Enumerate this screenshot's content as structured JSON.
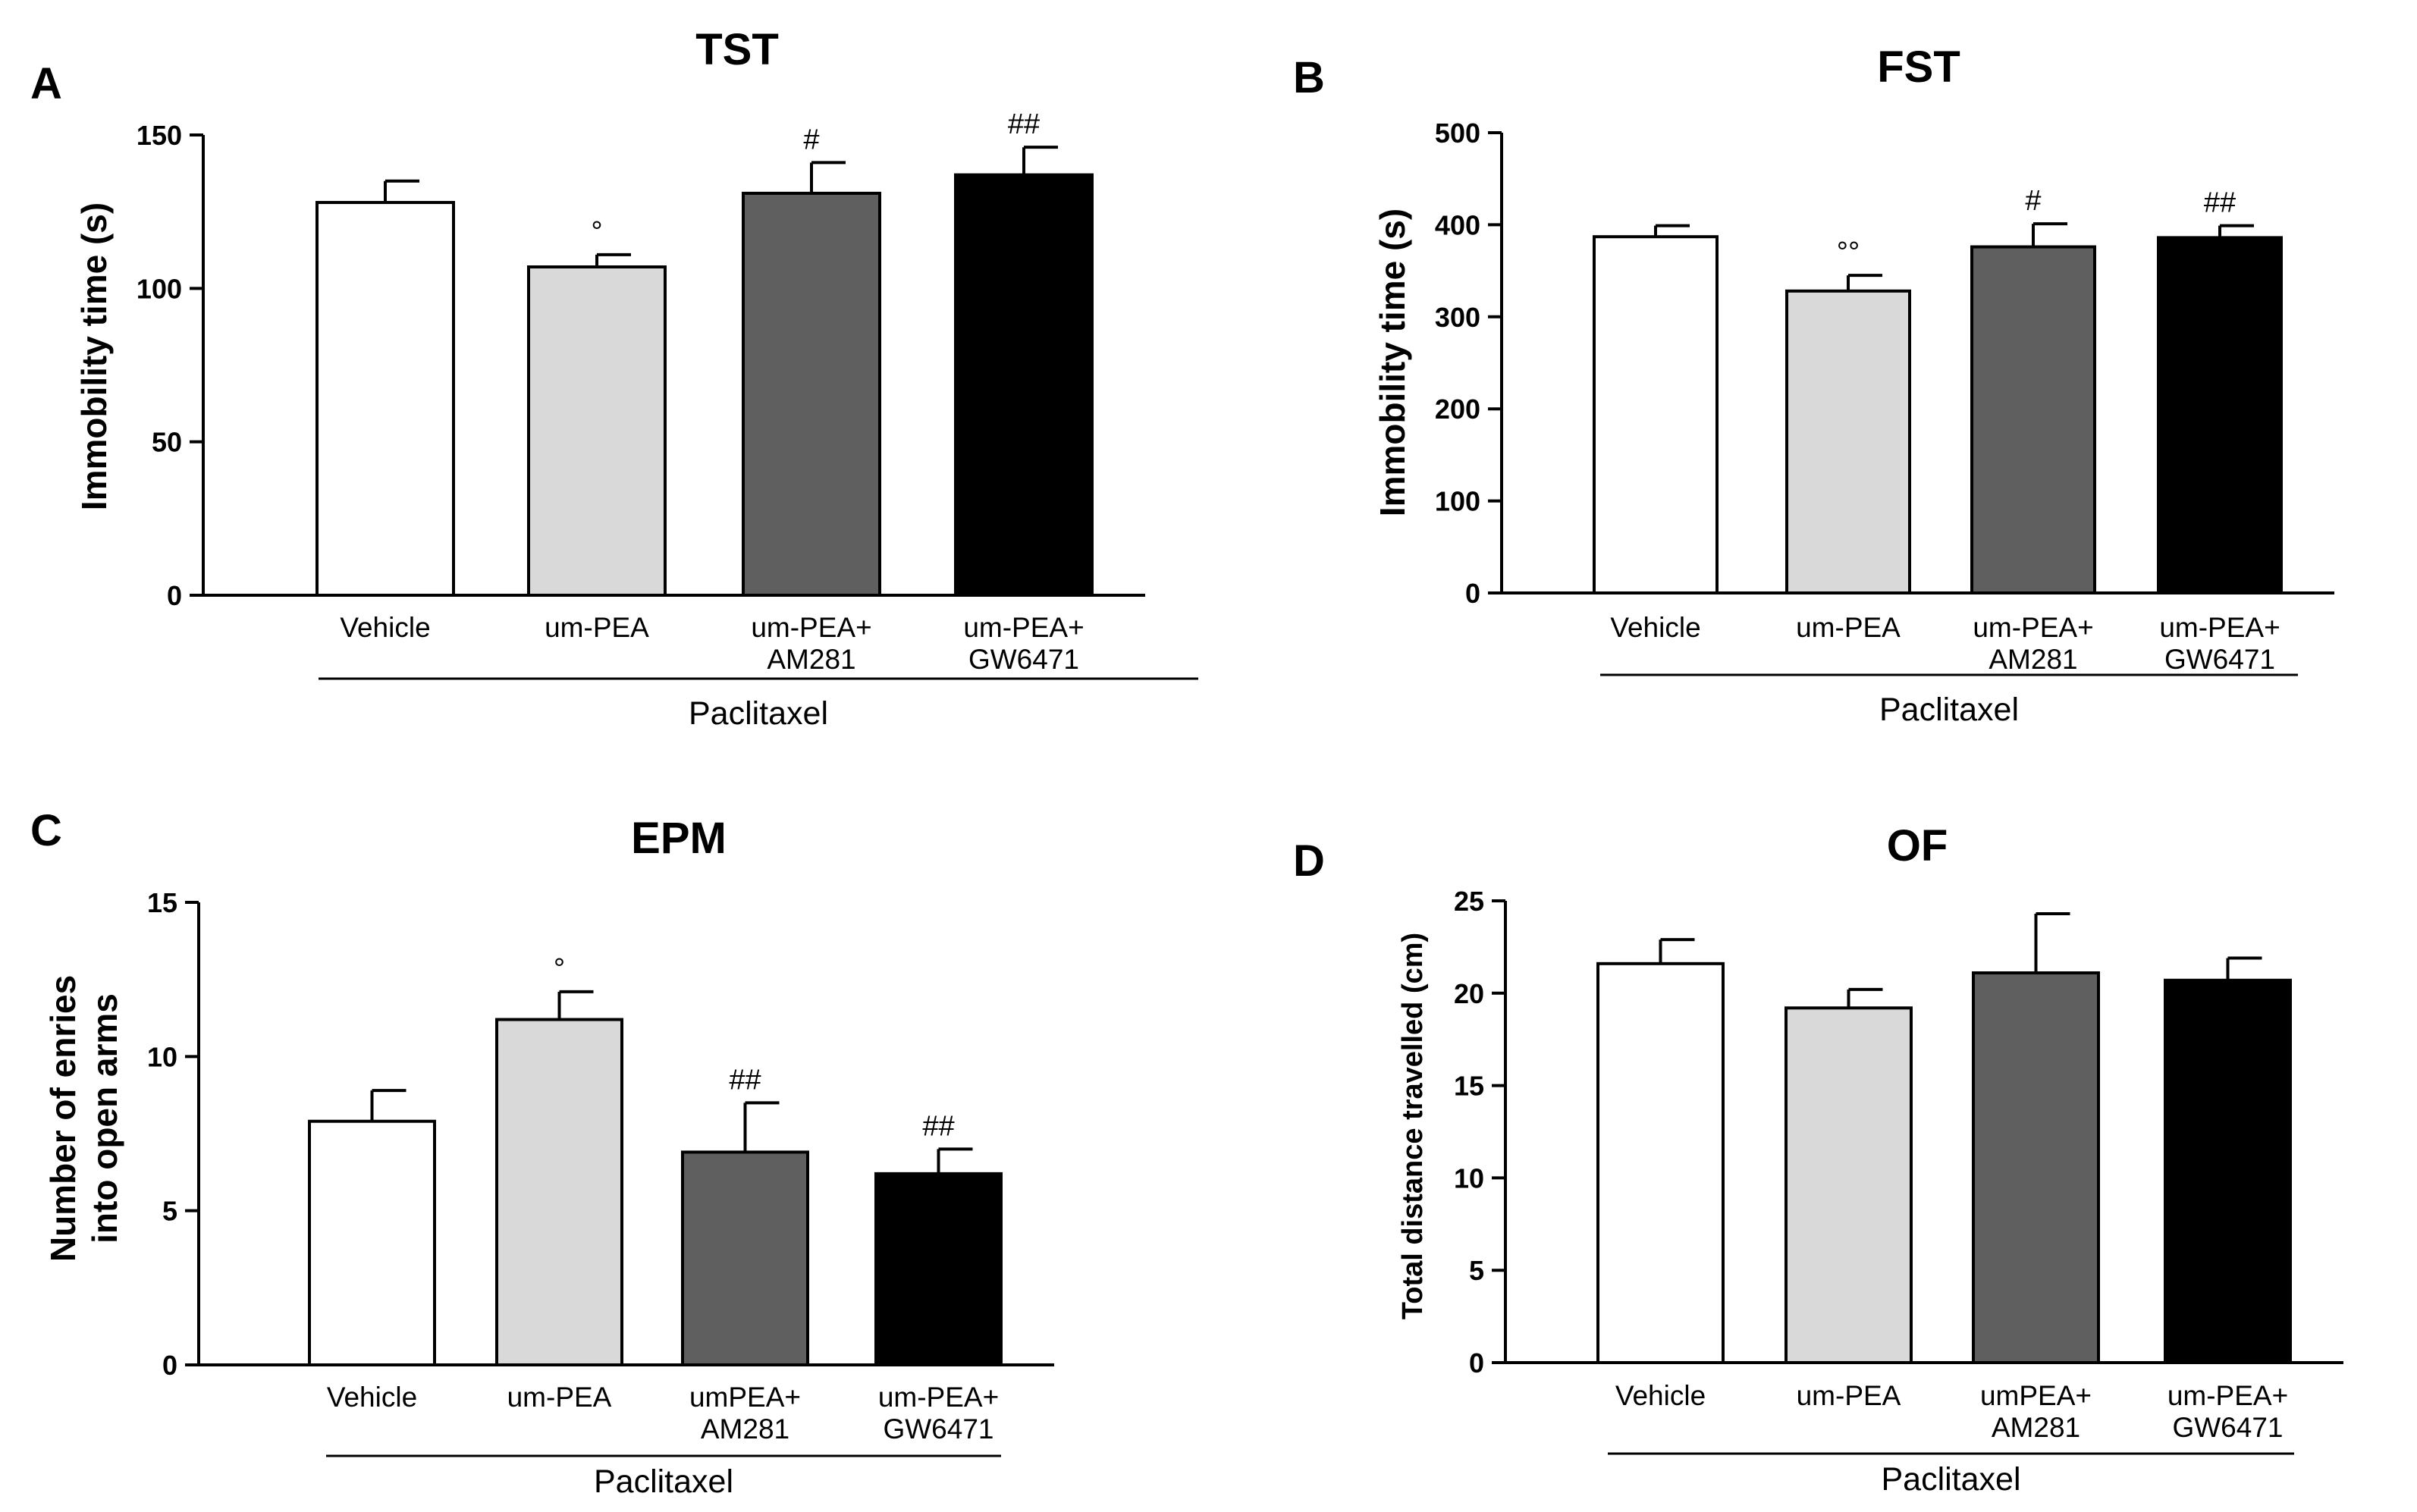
{
  "panels": [
    {
      "letter": "A",
      "chart_data": {
        "type": "bar",
        "title": "TST",
        "ylabel": [
          "Immobility time (s)"
        ],
        "xlabel": "",
        "group_label": "Paclitaxel",
        "categories": [
          [
            "Vehicle"
          ],
          [
            "um-PEA"
          ],
          [
            "um-PEA+",
            "AM281"
          ],
          [
            "um-PEA+",
            "GW6471"
          ]
        ],
        "values": [
          128,
          107,
          131,
          137
        ],
        "errors": [
          7,
          4,
          10,
          9
        ],
        "significance": [
          "",
          "°",
          "#",
          "##"
        ],
        "colors": [
          "#ffffff",
          "#d9d9d9",
          "#5f5f5f",
          "#000000"
        ],
        "ylim": [
          0,
          150
        ],
        "yticks": [
          0,
          50,
          100,
          150
        ],
        "grid": false
      }
    },
    {
      "letter": "B",
      "chart_data": {
        "type": "bar",
        "title": "FST",
        "ylabel": [
          "Immobility time (s)"
        ],
        "xlabel": "",
        "group_label": "Paclitaxel",
        "categories": [
          [
            "Vehicle"
          ],
          [
            "um-PEA"
          ],
          [
            "um-PEA+",
            "AM281"
          ],
          [
            "um-PEA+",
            "GW6471"
          ]
        ],
        "values": [
          387,
          328,
          376,
          386
        ],
        "errors": [
          12,
          17,
          25,
          13
        ],
        "significance": [
          "",
          "°°",
          "#",
          "##"
        ],
        "colors": [
          "#ffffff",
          "#d9d9d9",
          "#5f5f5f",
          "#000000"
        ],
        "ylim": [
          0,
          500
        ],
        "yticks": [
          0,
          100,
          200,
          300,
          400,
          500
        ],
        "grid": false
      }
    },
    {
      "letter": "C",
      "chart_data": {
        "type": "bar",
        "title": "EPM",
        "ylabel": [
          "Number of enries",
          "into open arms"
        ],
        "xlabel": "",
        "group_label": "Paclitaxel",
        "categories": [
          [
            "Vehicle"
          ],
          [
            "um-PEA"
          ],
          [
            "umPEA+",
            "AM281"
          ],
          [
            "um-PEA+",
            "GW6471"
          ]
        ],
        "values": [
          7.9,
          11.2,
          6.9,
          6.2
        ],
        "errors": [
          1.0,
          0.9,
          1.6,
          0.8
        ],
        "significance": [
          "",
          "°",
          "##",
          "##"
        ],
        "colors": [
          "#ffffff",
          "#d9d9d9",
          "#5f5f5f",
          "#000000"
        ],
        "ylim": [
          0,
          15
        ],
        "yticks": [
          0,
          5,
          10,
          15
        ],
        "grid": false
      }
    },
    {
      "letter": "D",
      "chart_data": {
        "type": "bar",
        "title": "OF",
        "ylabel": [
          "Total distance travelled (cm)"
        ],
        "xlabel": "",
        "group_label": "Paclitaxel",
        "categories": [
          [
            "Vehicle"
          ],
          [
            "um-PEA"
          ],
          [
            "umPEA+",
            "AM281"
          ],
          [
            "um-PEA+",
            "GW6471"
          ]
        ],
        "values": [
          21.6,
          19.2,
          21.1,
          20.7
        ],
        "errors": [
          1.3,
          1.0,
          3.2,
          1.2
        ],
        "significance": [
          "",
          "",
          "",
          ""
        ],
        "colors": [
          "#ffffff",
          "#d9d9d9",
          "#5f5f5f",
          "#000000"
        ],
        "ylim": [
          0,
          25
        ],
        "yticks": [
          0,
          5,
          10,
          15,
          20,
          25
        ],
        "grid": false
      }
    }
  ]
}
